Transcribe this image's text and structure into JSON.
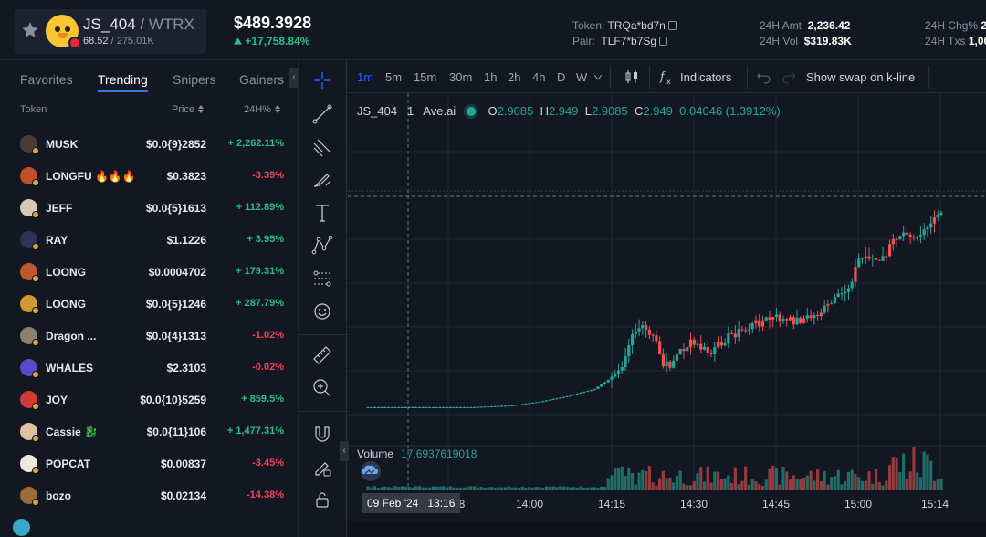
{
  "header": {
    "symbol": "JS_404",
    "quote": " / WTRX",
    "liquidity": "68.52",
    "liquidity_total": " / 275.01K",
    "price": "$489.3928",
    "change": "+17,758.84%",
    "token_label": "Token:",
    "token_value": "TRQa*bd7n",
    "pair_label": "Pair:",
    "pair_value": "TLF7*b7Sg",
    "amt_label": "24H Amt",
    "amt_value": "2,236.42",
    "vol_label": "24H Vol",
    "vol_value": "$319.83K",
    "chg_label": "24H Chg%",
    "chg_value": "2",
    "txs_label": "24H Txs",
    "txs_value": "1,00"
  },
  "left_panel": {
    "tabs": [
      {
        "label": "Favorites",
        "active": false
      },
      {
        "label": "Trending",
        "active": true
      },
      {
        "label": "Snipers",
        "active": false
      },
      {
        "label": "Gainers",
        "active": false
      }
    ],
    "columns": {
      "token": "Token",
      "price": "Price",
      "change": "24H%"
    },
    "rows": [
      {
        "name": "MUSK",
        "price": "$0.0{9}2852",
        "change": "+ 2,262.11%",
        "dir": "up",
        "color": "#4a3c3a"
      },
      {
        "name": "LONGFU 🔥🔥🔥",
        "price": "$0.3823",
        "change": "-3.39%",
        "dir": "down",
        "color": "#c0502a"
      },
      {
        "name": "JEFF",
        "price": "$0.0{5}1613",
        "change": "+ 112.89%",
        "dir": "up",
        "color": "#d8c8b8"
      },
      {
        "name": "RAY",
        "price": "$1.1226",
        "change": "+ 3.95%",
        "dir": "up",
        "color": "#2c3458"
      },
      {
        "name": "LOONG",
        "price": "$0.0004702",
        "change": "+ 179.31%",
        "dir": "up",
        "color": "#c0582e"
      },
      {
        "name": "LOONG",
        "price": "$0.0{5}1246",
        "change": "+ 287.79%",
        "dir": "up",
        "color": "#d09a30"
      },
      {
        "name": "Dragon ...",
        "price": "$0.0{4}1313",
        "change": "-1.02%",
        "dir": "down",
        "color": "#8a8070"
      },
      {
        "name": "WHALES",
        "price": "$2.3103",
        "change": "-0.02%",
        "dir": "down",
        "color": "#5a4ac8"
      },
      {
        "name": "JOY",
        "price": "$0.0{10}5259",
        "change": "+ 859.5%",
        "dir": "up",
        "color": "#d03a3a"
      },
      {
        "name": "Cassie 🐉",
        "price": "$0.0{11}106",
        "change": "+ 1,477.31%",
        "dir": "up",
        "color": "#e0c0a0"
      },
      {
        "name": "POPCAT",
        "price": "$0.00837",
        "change": "-3.45%",
        "dir": "down",
        "color": "#f0e8e0"
      },
      {
        "name": "bozo",
        "price": "$0.02134",
        "change": "-14.38%",
        "dir": "down",
        "color": "#9a6a3a"
      }
    ]
  },
  "chart": {
    "timeframes": [
      {
        "label": "1m",
        "active": true
      },
      {
        "label": "5m",
        "active": false
      },
      {
        "label": "15m",
        "active": false
      },
      {
        "label": "30m",
        "active": false
      },
      {
        "label": "1h",
        "active": false
      },
      {
        "label": "2h",
        "active": false
      },
      {
        "label": "4h",
        "active": false
      },
      {
        "label": "D",
        "active": false
      },
      {
        "label": "W",
        "active": false
      }
    ],
    "indicators_label": "Indicators",
    "swap_label": "Show swap on k-line",
    "symbol": "JS_404",
    "interval": "1",
    "source": "Ave.ai",
    "ohlc": {
      "o_label": "O",
      "o": "2.9085",
      "h_label": "H",
      "h": "2.949",
      "l_label": "L",
      "l": "2.9085",
      "c_label": "C",
      "c": "2.949",
      "change": "0.04046 (1.3912%)"
    },
    "volume_label": "Volume",
    "volume_value": "17.6937619018",
    "crosshair_date": "09 Feb '24",
    "crosshair_time": "13:16",
    "x_ticks": [
      "14:00",
      "14:15",
      "14:30",
      "14:45",
      "15:00",
      "15:14"
    ],
    "x_tick_partial": "8",
    "colors": {
      "up": "#26a69a",
      "down": "#ef5350",
      "grid": "#1f2430"
    }
  },
  "chart_data": {
    "type": "candlestick",
    "title": "",
    "x": [
      "13:16",
      "13:17",
      "13:18",
      "13:19",
      "13:20",
      "13:21",
      "13:22",
      "13:23",
      "13:24",
      "13:25",
      "13:26",
      "13:27",
      "13:28",
      "13:29",
      "13:30",
      "13:31",
      "13:32",
      "13:33",
      "13:34",
      "13:35",
      "13:36",
      "13:37",
      "13:38",
      "13:39",
      "13:40",
      "13:41",
      "13:42",
      "13:43",
      "13:44",
      "13:45",
      "13:46",
      "13:47",
      "13:48",
      "13:49",
      "13:50",
      "13:51",
      "13:52",
      "13:53",
      "13:54",
      "13:55",
      "13:56",
      "13:57",
      "13:58",
      "13:59",
      "14:00",
      "14:01",
      "14:02",
      "14:03",
      "14:04",
      "14:05",
      "14:06",
      "14:07",
      "14:08",
      "14:09",
      "14:10",
      "14:11",
      "14:12",
      "14:13",
      "14:14",
      "14:15",
      "14:16",
      "14:17",
      "14:18",
      "14:19",
      "14:20",
      "14:21",
      "14:22",
      "14:23",
      "14:24",
      "14:25",
      "14:26",
      "14:27",
      "14:28",
      "14:29",
      "14:30",
      "14:31",
      "14:32",
      "14:33",
      "14:34",
      "14:35",
      "14:36",
      "14:37",
      "14:38",
      "14:39",
      "14:40",
      "14:41",
      "14:42",
      "14:43",
      "14:44",
      "14:45",
      "14:46",
      "14:47",
      "14:48",
      "14:49",
      "14:50",
      "14:51",
      "14:52",
      "14:53",
      "14:54",
      "14:55",
      "14:56",
      "14:57",
      "14:58",
      "14:59",
      "15:00",
      "15:01",
      "15:02",
      "15:03",
      "15:04",
      "15:05",
      "15:06",
      "15:07",
      "15:08",
      "15:09",
      "15:10",
      "15:11",
      "15:12",
      "15:13",
      "15:14"
    ],
    "series": [],
    "volume_last": 17.6937619018,
    "ohlc_last": {
      "open": 2.9085,
      "high": 2.949,
      "low": 2.9085,
      "close": 2.949
    }
  }
}
